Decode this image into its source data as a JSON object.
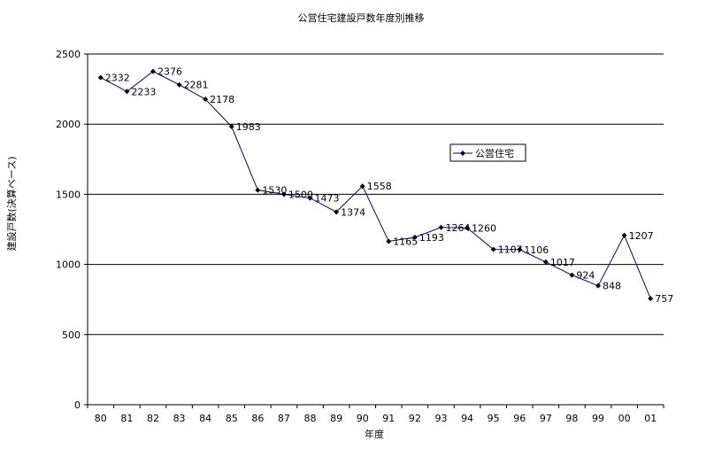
{
  "chart_data": {
    "type": "line",
    "title": "公営住宅建設戸数年度別推移",
    "xlabel": "年度",
    "ylabel": "建設戸数(決算ベース)",
    "categories": [
      "80",
      "81",
      "82",
      "83",
      "84",
      "85",
      "86",
      "87",
      "88",
      "89",
      "90",
      "91",
      "92",
      "93",
      "94",
      "95",
      "96",
      "97",
      "98",
      "99",
      "00",
      "01"
    ],
    "series": [
      {
        "name": "公営住宅",
        "values": [
          2332,
          2233,
          2376,
          2281,
          2178,
          1983,
          1530,
          1500,
          1473,
          1374,
          1558,
          1165,
          1193,
          1264,
          1260,
          1107,
          1106,
          1017,
          924,
          848,
          1207,
          757
        ]
      }
    ],
    "ylim": [
      0,
      2500
    ],
    "yticks": [
      0,
      500,
      1000,
      1500,
      2000,
      2500
    ],
    "grid": true,
    "legend": "right-middle",
    "colors": {
      "line": "#000080",
      "marker": "#000000",
      "grid": "#000000"
    }
  }
}
